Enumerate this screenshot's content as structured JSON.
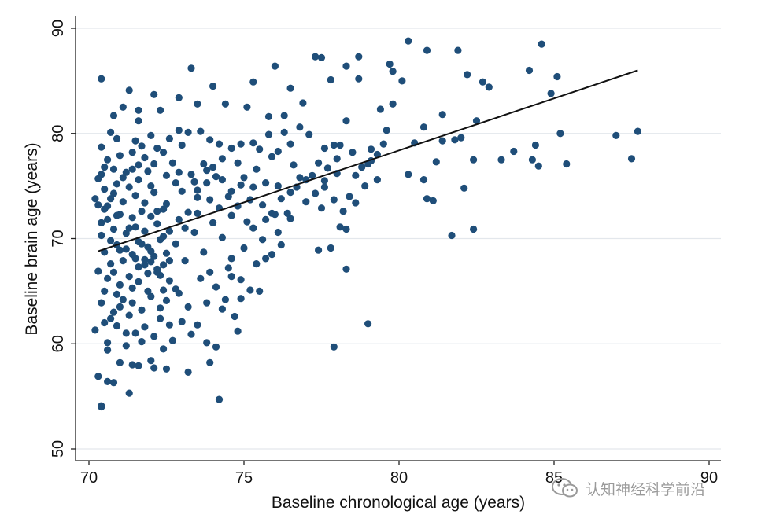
{
  "watermark": {
    "text": "认知神经科学前沿",
    "icon": "wechat-icon"
  },
  "chart_data": {
    "type": "scatter",
    "title": "",
    "xlabel": "Baseline chronological age (years)",
    "ylabel": "Baseline brain age (years)",
    "xlim": [
      70,
      90
    ],
    "ylim": [
      50,
      90
    ],
    "xticks": [
      70,
      75,
      80,
      85,
      90
    ],
    "yticks": [
      50,
      60,
      70,
      80,
      90
    ],
    "grid": "horizontal",
    "point_color": "#1f4e79",
    "fit_line": {
      "x": [
        70.3,
        87.7
      ],
      "y": [
        68.8,
        86.0
      ],
      "color": "#111111"
    },
    "points": [
      [
        70.4,
        85.2
      ],
      [
        71.3,
        84.1
      ],
      [
        72.1,
        83.7
      ],
      [
        73.3,
        86.2
      ],
      [
        74.0,
        84.5
      ],
      [
        75.3,
        84.9
      ],
      [
        76.0,
        86.4
      ],
      [
        77.3,
        87.3
      ],
      [
        77.5,
        87.2
      ],
      [
        78.7,
        87.3
      ],
      [
        79.7,
        86.6
      ],
      [
        80.3,
        88.8
      ],
      [
        80.9,
        87.9
      ],
      [
        81.9,
        87.9
      ],
      [
        84.6,
        88.5
      ],
      [
        84.2,
        86.0
      ],
      [
        85.1,
        85.4
      ],
      [
        82.2,
        85.6
      ],
      [
        82.7,
        84.9
      ],
      [
        80.1,
        85.0
      ],
      [
        79.8,
        85.9
      ],
      [
        78.3,
        86.4
      ],
      [
        78.7,
        85.2
      ],
      [
        77.8,
        85.1
      ],
      [
        76.5,
        84.3
      ],
      [
        76.9,
        82.9
      ],
      [
        76.3,
        81.7
      ],
      [
        75.8,
        81.6
      ],
      [
        75.1,
        82.5
      ],
      [
        74.4,
        82.8
      ],
      [
        73.5,
        82.8
      ],
      [
        72.9,
        83.4
      ],
      [
        72.3,
        82.2
      ],
      [
        71.6,
        82.2
      ],
      [
        71.1,
        82.5
      ],
      [
        70.8,
        81.7
      ],
      [
        79.4,
        82.3
      ],
      [
        79.8,
        82.8
      ],
      [
        81.4,
        81.8
      ],
      [
        82.9,
        84.4
      ],
      [
        84.9,
        83.8
      ],
      [
        85.2,
        80.0
      ],
      [
        85.4,
        77.1
      ],
      [
        87.0,
        79.8
      ],
      [
        87.7,
        80.2
      ],
      [
        87.5,
        77.6
      ],
      [
        84.5,
        76.9
      ],
      [
        84.3,
        77.5
      ],
      [
        84.4,
        78.9
      ],
      [
        83.3,
        77.5
      ],
      [
        83.7,
        78.3
      ],
      [
        82.5,
        81.2
      ],
      [
        82.4,
        77.5
      ],
      [
        81.8,
        79.4
      ],
      [
        82.0,
        79.6
      ],
      [
        81.4,
        79.3
      ],
      [
        81.2,
        77.3
      ],
      [
        80.8,
        80.6
      ],
      [
        80.8,
        75.6
      ],
      [
        80.3,
        76.1
      ],
      [
        80.5,
        79.1
      ],
      [
        80.9,
        73.8
      ],
      [
        81.1,
        73.6
      ],
      [
        81.7,
        70.3
      ],
      [
        82.4,
        70.9
      ],
      [
        82.1,
        74.8
      ],
      [
        79.3,
        78.0
      ],
      [
        79.5,
        79.0
      ],
      [
        79.6,
        80.3
      ],
      [
        79.1,
        78.5
      ],
      [
        79.0,
        77.1
      ],
      [
        78.6,
        76.0
      ],
      [
        78.3,
        81.2
      ],
      [
        78.1,
        78.9
      ],
      [
        77.9,
        78.9
      ],
      [
        77.6,
        78.6
      ],
      [
        77.4,
        77.2
      ],
      [
        77.1,
        79.9
      ],
      [
        76.8,
        80.6
      ],
      [
        76.5,
        79.0
      ],
      [
        76.3,
        80.1
      ],
      [
        76.1,
        78.3
      ],
      [
        75.8,
        79.9
      ],
      [
        75.5,
        78.5
      ],
      [
        75.3,
        79.1
      ],
      [
        74.9,
        79.0
      ],
      [
        74.6,
        78.6
      ],
      [
        74.2,
        79.0
      ],
      [
        73.9,
        79.4
      ],
      [
        73.6,
        80.2
      ],
      [
        73.2,
        80.1
      ],
      [
        72.9,
        80.3
      ],
      [
        72.6,
        79.5
      ],
      [
        72.4,
        78.2
      ],
      [
        78.9,
        75.0
      ],
      [
        78.4,
        74.0
      ],
      [
        78.2,
        72.6
      ],
      [
        77.9,
        73.7
      ],
      [
        77.6,
        75.5
      ],
      [
        77.3,
        74.3
      ],
      [
        77.0,
        73.5
      ],
      [
        76.8,
        75.8
      ],
      [
        76.5,
        74.4
      ],
      [
        76.1,
        75.0
      ],
      [
        75.9,
        72.4
      ],
      [
        75.6,
        73.2
      ],
      [
        75.3,
        74.9
      ],
      [
        75.0,
        75.8
      ],
      [
        74.8,
        73.1
      ],
      [
        74.6,
        74.5
      ],
      [
        74.3,
        75.6
      ],
      [
        74.0,
        76.8
      ],
      [
        73.8,
        75.3
      ],
      [
        73.5,
        73.9
      ],
      [
        73.3,
        76.1
      ],
      [
        73.0,
        74.5
      ],
      [
        72.8,
        75.3
      ],
      [
        72.5,
        73.3
      ],
      [
        72.2,
        72.6
      ],
      [
        78.1,
        71.1
      ],
      [
        78.3,
        70.9
      ],
      [
        77.4,
        68.9
      ],
      [
        77.8,
        69.1
      ],
      [
        76.2,
        69.4
      ],
      [
        75.9,
        68.5
      ],
      [
        75.6,
        69.9
      ],
      [
        75.3,
        71.0
      ],
      [
        75.0,
        69.1
      ],
      [
        74.6,
        68.1
      ],
      [
        74.3,
        70.1
      ],
      [
        74.0,
        71.5
      ],
      [
        73.7,
        68.7
      ],
      [
        73.4,
        70.6
      ],
      [
        73.1,
        71.0
      ],
      [
        72.8,
        69.5
      ],
      [
        78.3,
        67.1
      ],
      [
        79.0,
        61.9
      ],
      [
        77.9,
        59.7
      ],
      [
        75.5,
        65.0
      ],
      [
        75.2,
        65.1
      ],
      [
        74.9,
        64.3
      ],
      [
        74.7,
        62.6
      ],
      [
        74.4,
        64.2
      ],
      [
        74.1,
        65.4
      ],
      [
        73.8,
        63.9
      ],
      [
        73.5,
        61.8
      ],
      [
        73.2,
        63.5
      ],
      [
        72.9,
        64.8
      ],
      [
        72.6,
        61.8
      ],
      [
        72.3,
        63.4
      ],
      [
        74.8,
        61.2
      ],
      [
        74.1,
        59.7
      ],
      [
        73.9,
        58.2
      ],
      [
        73.2,
        57.3
      ],
      [
        72.5,
        57.6
      ],
      [
        72.1,
        57.7
      ],
      [
        74.2,
        54.7
      ],
      [
        71.3,
        55.3
      ],
      [
        70.8,
        56.3
      ],
      [
        70.4,
        54.1
      ],
      [
        70.4,
        54.0
      ],
      [
        70.3,
        56.9
      ],
      [
        70.6,
        56.4
      ],
      [
        71.0,
        58.2
      ],
      [
        71.4,
        58.0
      ],
      [
        71.6,
        57.9
      ],
      [
        72.0,
        58.4
      ],
      [
        70.6,
        59.4
      ],
      [
        71.2,
        59.8
      ],
      [
        70.2,
        61.3
      ],
      [
        70.5,
        62.0
      ],
      [
        70.9,
        61.7
      ],
      [
        71.5,
        61.0
      ],
      [
        71.8,
        61.6
      ],
      [
        72.3,
        62.4
      ],
      [
        70.4,
        63.9
      ],
      [
        70.8,
        63.0
      ],
      [
        71.1,
        64.2
      ],
      [
        71.4,
        63.9
      ],
      [
        71.7,
        63.2
      ],
      [
        72.0,
        64.5
      ],
      [
        72.4,
        65.1
      ],
      [
        70.6,
        66.2
      ],
      [
        71.0,
        65.6
      ],
      [
        71.3,
        66.4
      ],
      [
        71.6,
        65.9
      ],
      [
        71.9,
        66.7
      ],
      [
        72.2,
        67.1
      ],
      [
        72.6,
        66.0
      ],
      [
        70.3,
        66.9
      ],
      [
        70.7,
        67.6
      ],
      [
        71.1,
        67.9
      ],
      [
        71.5,
        68.1
      ],
      [
        71.8,
        67.5
      ],
      [
        72.1,
        68.3
      ],
      [
        72.5,
        68.6
      ],
      [
        70.5,
        68.7
      ],
      [
        70.9,
        69.4
      ],
      [
        71.2,
        69.0
      ],
      [
        71.6,
        69.7
      ],
      [
        71.9,
        69.2
      ],
      [
        72.3,
        69.9
      ],
      [
        70.4,
        70.3
      ],
      [
        70.8,
        70.9
      ],
      [
        71.2,
        70.5
      ],
      [
        71.5,
        71.1
      ],
      [
        71.8,
        70.7
      ],
      [
        72.2,
        71.4
      ],
      [
        70.6,
        71.8
      ],
      [
        71.0,
        72.3
      ],
      [
        71.4,
        72.0
      ],
      [
        71.7,
        72.6
      ],
      [
        72.0,
        72.1
      ],
      [
        72.4,
        72.8
      ],
      [
        70.3,
        73.2
      ],
      [
        70.7,
        73.8
      ],
      [
        71.1,
        73.5
      ],
      [
        71.5,
        74.1
      ],
      [
        71.8,
        73.4
      ],
      [
        72.1,
        74.4
      ],
      [
        70.5,
        74.7
      ],
      [
        70.9,
        75.2
      ],
      [
        71.3,
        74.9
      ],
      [
        71.6,
        75.6
      ],
      [
        72.0,
        75.0
      ],
      [
        70.4,
        76.1
      ],
      [
        70.8,
        76.6
      ],
      [
        71.2,
        76.3
      ],
      [
        71.6,
        77.0
      ],
      [
        71.9,
        76.4
      ],
      [
        70.6,
        77.5
      ],
      [
        71.0,
        77.9
      ],
      [
        71.4,
        78.2
      ],
      [
        71.8,
        77.7
      ],
      [
        72.2,
        78.6
      ],
      [
        70.4,
        78.7
      ],
      [
        70.9,
        79.5
      ],
      [
        71.5,
        79.3
      ],
      [
        72.0,
        79.8
      ],
      [
        70.7,
        80.1
      ],
      [
        71.6,
        81.2
      ],
      [
        73.0,
        78.9
      ],
      [
        72.7,
        77.2
      ],
      [
        72.9,
        76.3
      ],
      [
        73.4,
        75.4
      ],
      [
        73.7,
        77.1
      ],
      [
        74.3,
        77.6
      ],
      [
        74.8,
        77.2
      ],
      [
        75.4,
        76.6
      ],
      [
        75.9,
        77.8
      ],
      [
        76.6,
        77.0
      ],
      [
        77.2,
        76.0
      ],
      [
        77.7,
        76.7
      ],
      [
        78.0,
        77.6
      ],
      [
        78.5,
        78.2
      ],
      [
        79.1,
        77.4
      ],
      [
        74.6,
        72.2
      ],
      [
        75.1,
        71.6
      ],
      [
        75.7,
        71.8
      ],
      [
        76.0,
        72.3
      ],
      [
        76.5,
        71.9
      ],
      [
        73.5,
        72.4
      ],
      [
        73.9,
        73.7
      ],
      [
        74.2,
        72.9
      ],
      [
        73.1,
        67.9
      ],
      [
        73.6,
        66.2
      ],
      [
        73.9,
        66.8
      ],
      [
        74.5,
        67.2
      ],
      [
        74.9,
        66.1
      ],
      [
        75.4,
        67.6
      ],
      [
        74.3,
        63.3
      ],
      [
        73.0,
        62.1
      ],
      [
        72.8,
        65.2
      ],
      [
        72.5,
        64.1
      ],
      [
        73.3,
        60.9
      ],
      [
        72.7,
        60.3
      ],
      [
        74.6,
        66.4
      ],
      [
        75.7,
        68.1
      ],
      [
        76.1,
        70.6
      ],
      [
        76.4,
        72.4
      ],
      [
        77.5,
        72.9
      ],
      [
        78.6,
        73.4
      ],
      [
        70.5,
        65.0
      ],
      [
        70.9,
        64.7
      ],
      [
        71.3,
        62.7
      ],
      [
        71.7,
        60.2
      ],
      [
        72.4,
        59.5
      ],
      [
        70.7,
        62.4
      ],
      [
        71.2,
        61.0
      ],
      [
        70.6,
        60.1
      ],
      [
        72.1,
        60.7
      ],
      [
        73.8,
        60.1
      ],
      [
        71.0,
        63.5
      ],
      [
        71.4,
        65.3
      ],
      [
        71.9,
        65.0
      ],
      [
        72.3,
        66.5
      ],
      [
        70.8,
        66.8
      ],
      [
        71.6,
        67.3
      ],
      [
        72.0,
        67.8
      ],
      [
        72.4,
        70.2
      ],
      [
        72.6,
        70.7
      ],
      [
        72.9,
        71.8
      ],
      [
        73.2,
        72.5
      ],
      [
        73.5,
        74.6
      ],
      [
        73.8,
        76.5
      ],
      [
        74.1,
        75.9
      ],
      [
        74.5,
        74.0
      ],
      [
        74.9,
        75.1
      ],
      [
        75.2,
        73.7
      ],
      [
        75.7,
        75.3
      ],
      [
        76.2,
        73.8
      ],
      [
        76.7,
        74.9
      ],
      [
        77.0,
        75.6
      ],
      [
        77.6,
        74.9
      ],
      [
        78.0,
        76.2
      ],
      [
        78.8,
        76.8
      ],
      [
        79.3,
        75.6
      ],
      [
        70.3,
        75.7
      ],
      [
        70.6,
        73.1
      ],
      [
        70.9,
        72.2
      ],
      [
        71.3,
        71.0
      ],
      [
        71.7,
        69.5
      ],
      [
        72.0,
        68.8
      ],
      [
        72.4,
        67.5
      ],
      [
        70.4,
        71.5
      ],
      [
        70.7,
        69.8
      ],
      [
        71.0,
        68.9
      ],
      [
        71.4,
        68.5
      ],
      [
        71.8,
        68.0
      ],
      [
        72.2,
        66.8
      ],
      [
        72.6,
        67.9
      ],
      [
        70.5,
        72.8
      ],
      [
        70.8,
        74.3
      ],
      [
        71.1,
        75.8
      ],
      [
        71.4,
        76.6
      ],
      [
        71.7,
        78.8
      ],
      [
        72.1,
        77.1
      ],
      [
        72.5,
        76.0
      ],
      [
        70.2,
        73.8
      ],
      [
        70.5,
        76.8
      ]
    ]
  }
}
